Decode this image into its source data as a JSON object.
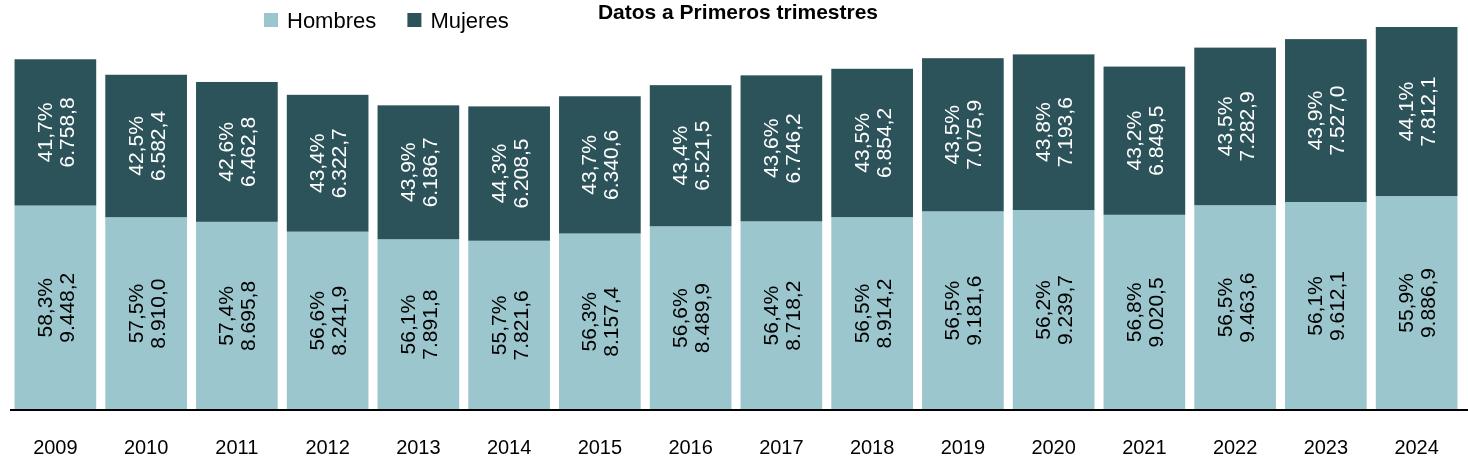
{
  "chart_data": {
    "type": "bar",
    "title": "Datos a Primeros trimestres",
    "stacked": true,
    "legend": "top",
    "categories": [
      "2009",
      "2010",
      "2011",
      "2012",
      "2013",
      "2014",
      "2015",
      "2016",
      "2017",
      "2018",
      "2019",
      "2020",
      "2021",
      "2022",
      "2023",
      "2024"
    ],
    "series": [
      {
        "name": "Hombres",
        "color": "#9cc6cd",
        "values": [
          9448.2,
          8910.0,
          8695.8,
          8241.9,
          7891.8,
          7821.6,
          8157.4,
          8489.9,
          8718.2,
          8914.2,
          9181.6,
          9239.7,
          9020.5,
          9463.6,
          9612.1,
          9886.9
        ],
        "value_labels": [
          "58,3%\n9.448,2",
          "57,5%\n8.910,0",
          "57,4%\n8.695,8",
          "56,6%\n8.241,9",
          "56,1%\n7.891,8",
          "55,7%\n7.821,6",
          "56,3%\n8.157,4",
          "56,6%\n8.489,9",
          "56,4%\n8.718,2",
          "56,5%\n8.914,2",
          "56,5%\n9.181,6",
          "56,2%\n9.239,7",
          "56,8%\n9.020,5",
          "56,5%\n9.463,6",
          "56,1%\n9.612,1",
          "55,9%\n9.886,9"
        ]
      },
      {
        "name": "Mujeres",
        "color": "#2c525a",
        "values": [
          6758.8,
          6582.4,
          6462.8,
          6322.7,
          6186.7,
          6208.5,
          6340.6,
          6521.5,
          6746.2,
          6854.2,
          7075.9,
          7193.6,
          6849.5,
          7282.9,
          7527.0,
          7812.1
        ],
        "value_labels": [
          "41,7%\n6.758,8",
          "42,5%\n6.582,4",
          "42,6%\n6.462,8",
          "43,4%\n6.322,7",
          "43,9%\n6.186,7",
          "44,3%\n6.208,5",
          "43,7%\n6.340,6",
          "43,4%\n6.521,5",
          "43,6%\n6.746,2",
          "43,5%\n6.854,2",
          "43,5%\n7.075,9",
          "43,8%\n7.193,6",
          "43,2%\n6.849,5",
          "43,5%\n7.282,9",
          "43,9%\n7.527,0",
          "44,1%\n7.812,1"
        ]
      }
    ]
  }
}
